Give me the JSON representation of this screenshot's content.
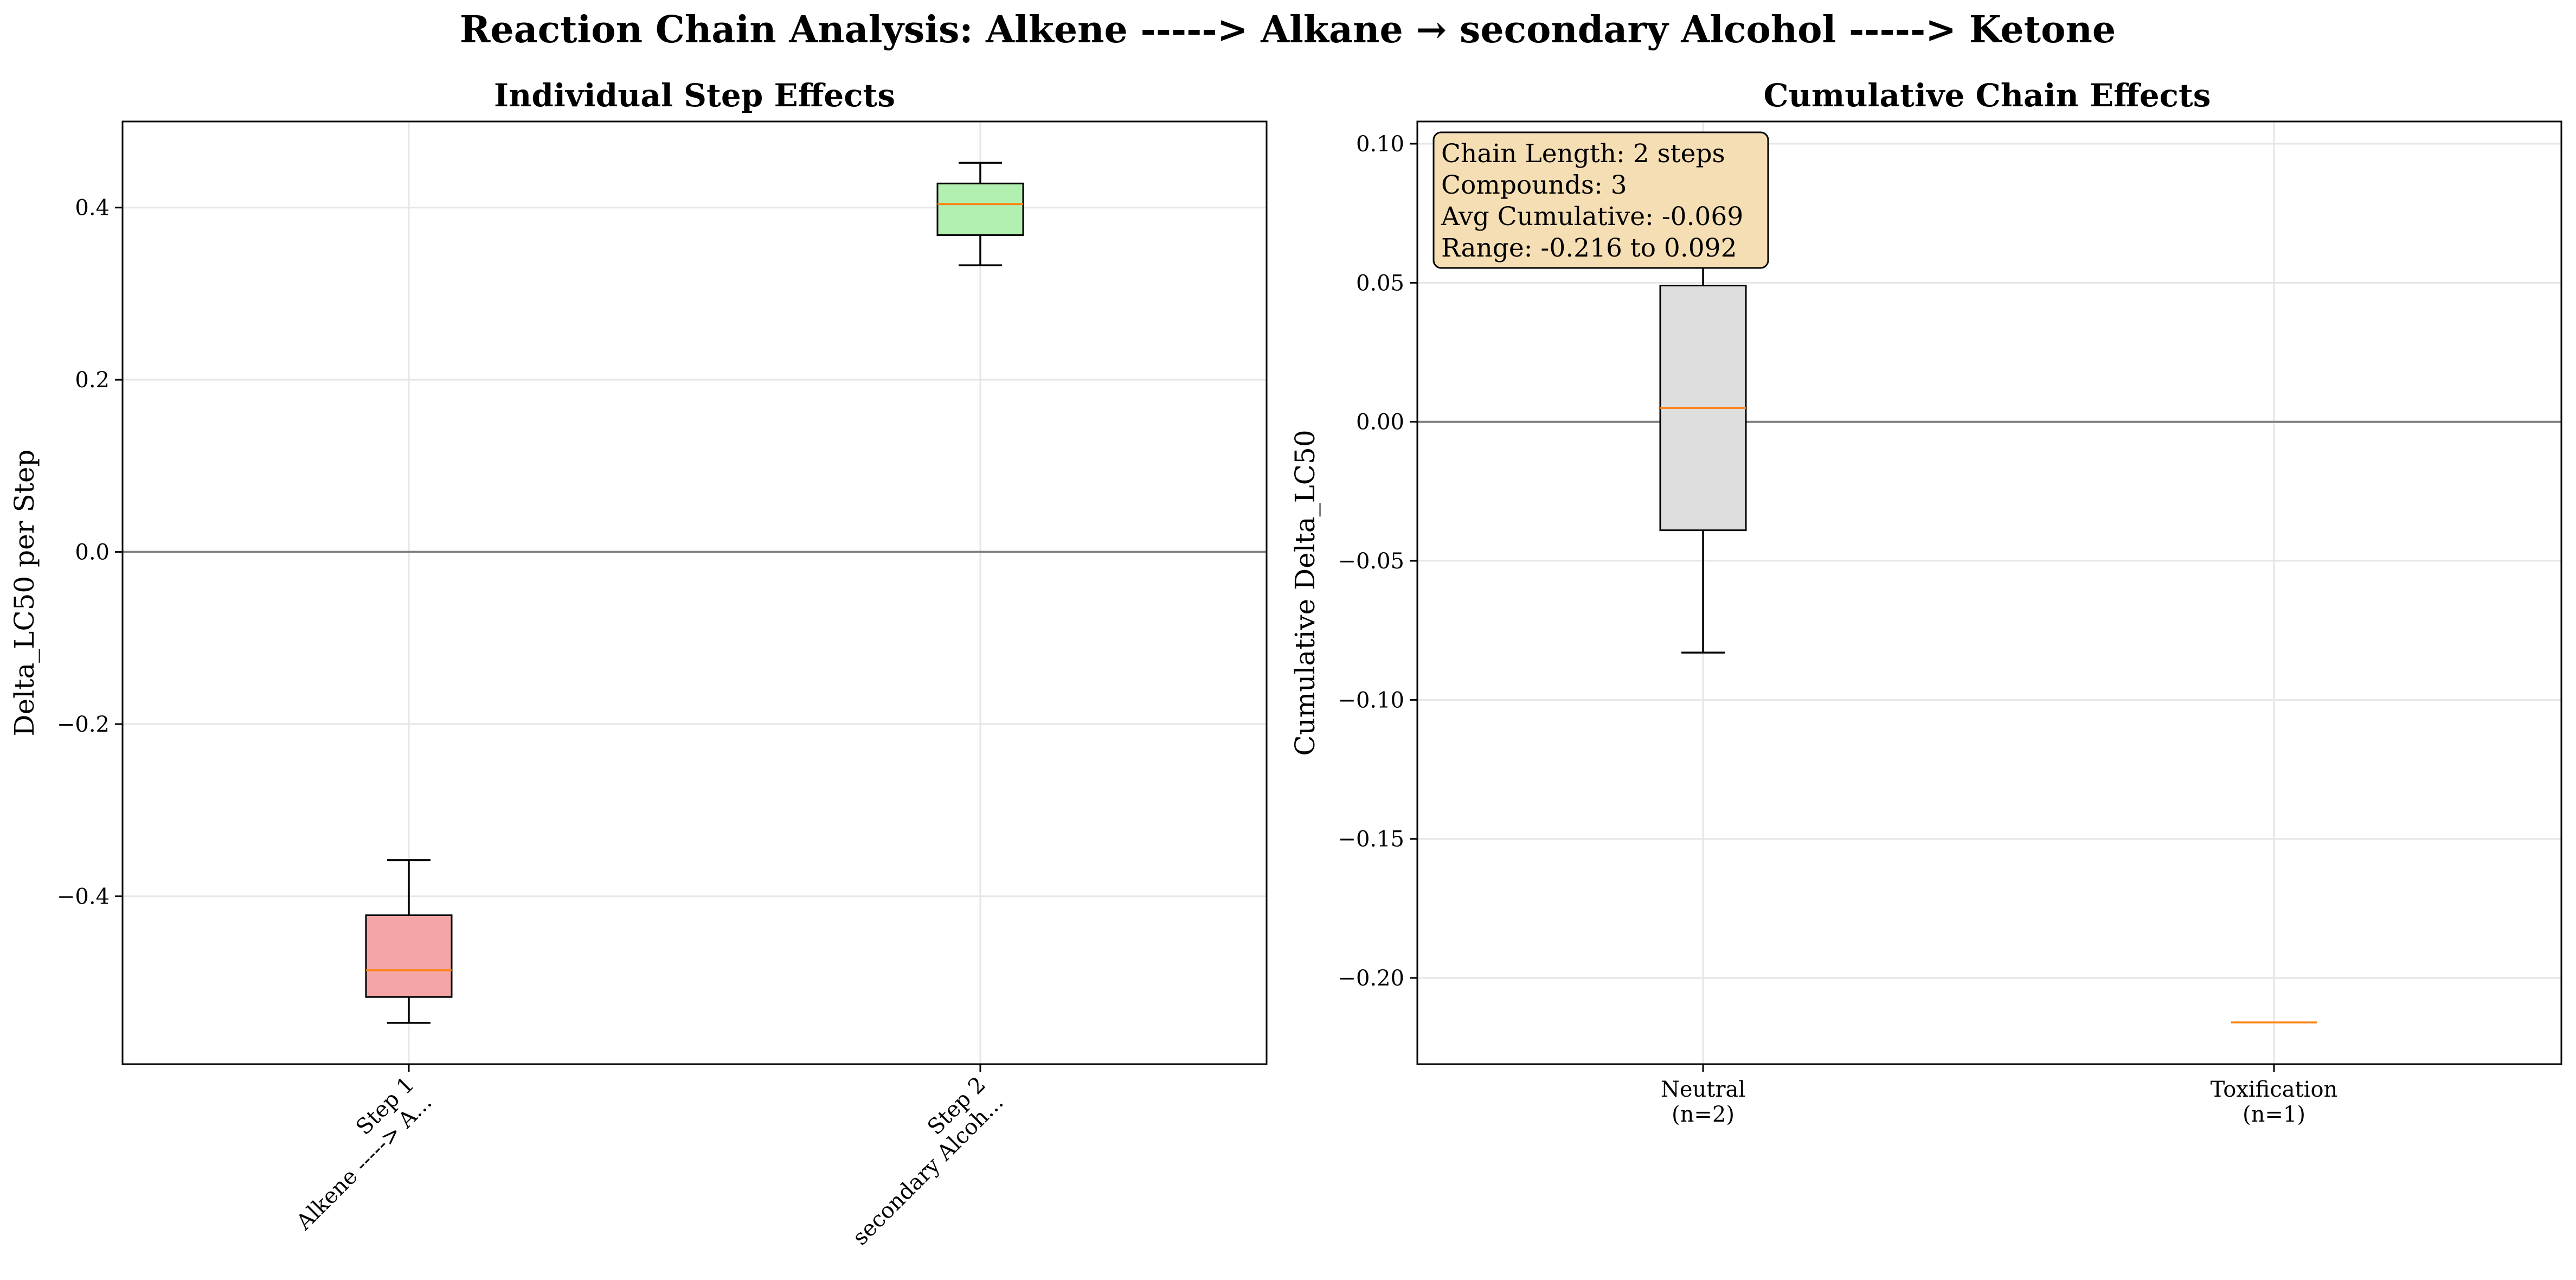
{
  "figure": {
    "suptitle": "Reaction Chain Analysis: Alkene -----> Alkane → secondary Alcohol -----> Ketone"
  },
  "colors": {
    "step1_fill": "#f4a6a6",
    "step2_fill": "#b2f0b2",
    "neutral_fill": "#dedede",
    "median": "#ff7f0e",
    "zero_line": "#808080",
    "grid": "#e6e6e6",
    "info_box": "#f5deb3"
  },
  "chart_data": [
    {
      "type": "box",
      "title": "Individual Step Effects",
      "ylabel": "Delta_LC50 per Step",
      "xlabel": "",
      "categories": [
        {
          "line1": "Step 1",
          "line2": "Alkene -----> A..."
        },
        {
          "line1": "Step 2",
          "line2": "secondary Alcoh..."
        }
      ],
      "boxes": [
        {
          "whisker_low": -0.547,
          "q1": -0.517,
          "median": -0.486,
          "q3": -0.422,
          "whisker_high": -0.358,
          "fill_key": "step1_fill"
        },
        {
          "whisker_low": 0.333,
          "q1": 0.368,
          "median": 0.404,
          "q3": 0.428,
          "whisker_high": 0.452,
          "fill_key": "step2_fill"
        }
      ],
      "ylim": [
        -0.595,
        0.5
      ],
      "yticks": [
        -0.4,
        -0.2,
        0.0,
        0.2,
        0.4
      ],
      "ytick_labels": [
        "−0.4",
        "−0.2",
        "0.0",
        "0.2",
        "0.4"
      ],
      "reference_line": 0.0,
      "grid": true
    },
    {
      "type": "box",
      "title": "Cumulative Chain Effects",
      "ylabel": "Cumulative Delta_LC50",
      "xlabel": "",
      "categories": [
        {
          "line1": "Neutral",
          "line2": "(n=2)"
        },
        {
          "line1": "Toxification",
          "line2": "(n=1)"
        }
      ],
      "boxes": [
        {
          "whisker_low": -0.083,
          "q1": -0.039,
          "median": 0.005,
          "q3": 0.049,
          "whisker_high": 0.092,
          "fill_key": "neutral_fill"
        },
        {
          "whisker_low": -0.216,
          "q1": -0.216,
          "median": -0.216,
          "q3": -0.216,
          "whisker_high": -0.216,
          "fill_key": "neutral_fill"
        }
      ],
      "ylim": [
        -0.231,
        0.108
      ],
      "yticks": [
        -0.2,
        -0.15,
        -0.1,
        -0.05,
        0.0,
        0.05,
        0.1
      ],
      "ytick_labels": [
        "−0.20",
        "−0.15",
        "−0.10",
        "−0.05",
        "0.00",
        "0.05",
        "0.10"
      ],
      "reference_line": 0.0,
      "grid": true,
      "info_box": [
        "Chain Length: 2 steps",
        "Compounds: 3",
        "Avg Cumulative: -0.069",
        "Range: -0.216 to 0.092"
      ]
    }
  ]
}
